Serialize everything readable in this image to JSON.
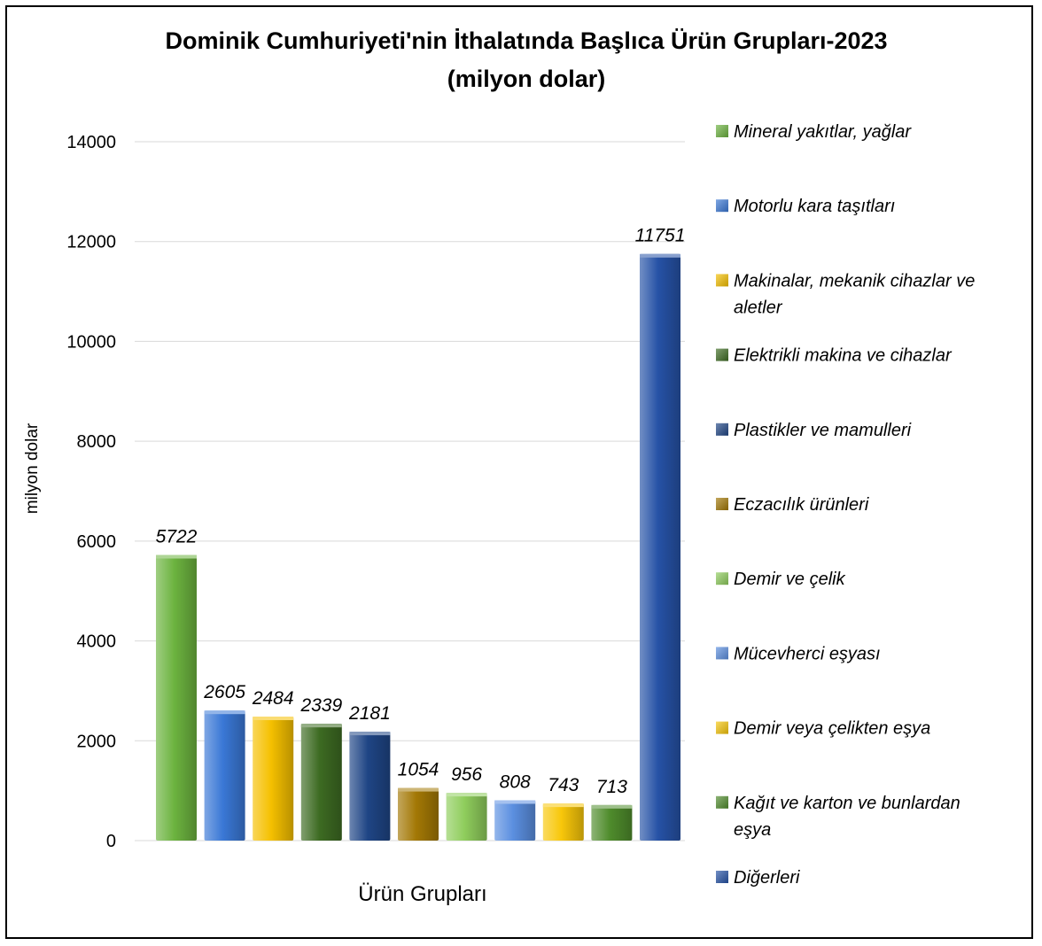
{
  "chart_data": {
    "type": "bar",
    "title": "Dominik Cumhuriyeti'nin İthalatında Başlıca Ürün Grupları-2023",
    "subtitle": "(milyon dolar)",
    "xlabel": "Ürün Grupları",
    "ylabel": "milyon dolar",
    "ylim": [
      0,
      14000
    ],
    "yticks": [
      "0",
      "2000",
      "4000",
      "6000",
      "8000",
      "10000",
      "12000",
      "14000"
    ],
    "grid": true,
    "legend_position": "right",
    "categories": [
      [
        "Mineral yakıtlar, yağlar"
      ],
      [
        "Motorlu kara taşıtları"
      ],
      [
        "Makinalar, mekanik cihazlar ve",
        "aletler"
      ],
      [
        "Elektrikli makina ve cihazlar"
      ],
      [
        "Plastikler ve mamulleri"
      ],
      [
        "Eczacılık ürünleri"
      ],
      [
        "Demir ve çelik"
      ],
      [
        "Mücevherci eşyası"
      ],
      [
        "Demir veya çelikten eşya"
      ],
      [
        "Kağıt ve karton ve bunlardan",
        "eşya"
      ],
      [
        "Diğerleri"
      ]
    ],
    "values": [
      5722,
      2605,
      2484,
      2339,
      2181,
      1054,
      956,
      808,
      743,
      713,
      11751
    ],
    "data_labels": [
      "5722",
      "2605",
      "2484",
      "2339",
      "2181",
      "1054",
      "956",
      "808",
      "743",
      "713",
      "11751"
    ],
    "colors": [
      "#6cb33f",
      "#3a78d6",
      "#f5c000",
      "#3d6b22",
      "#1f4585",
      "#a37805",
      "#8fcd5c",
      "#5b8fe0",
      "#f8c70a",
      "#4f8c2c",
      "#2652a6"
    ]
  }
}
